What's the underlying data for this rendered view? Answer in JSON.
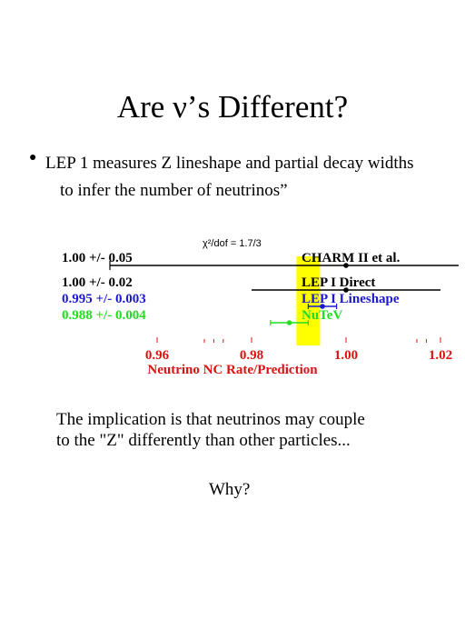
{
  "slide": {
    "title_prefix": "Are ",
    "title_nu": "ν",
    "title_suffix": "’s Different?",
    "bullet_line1": "LEP 1 measures Z lineshape and partial decay widths",
    "bullet_line2": "to infer the number of neutrinos”",
    "implication_line1": "The implication is that neutrinos may couple",
    "implication_line2": "to the \"Z\" differently than other particles...",
    "why": "Why?"
  },
  "chart_data": {
    "type": "scatter",
    "annotation": "χ²/dof = 1.7/3",
    "xlabel": "Neutrino NC Rate/Prediction",
    "xlim": [
      0.945,
      1.03
    ],
    "xticks": [
      "0.96",
      "0.98",
      "1.00",
      "1.02"
    ],
    "band": {
      "center": 0.992,
      "halfwidth": 0.0025,
      "color": "#ffff00"
    },
    "series": [
      {
        "name": "CHARM II et al.",
        "label": "1.00 +/- 0.05",
        "value": 1.0,
        "error": 0.05,
        "color": "#000000"
      },
      {
        "name": "LEP I Direct",
        "label": "1.00 +/- 0.02",
        "value": 1.0,
        "error": 0.02,
        "color": "#000000"
      },
      {
        "name": "LEP I Lineshape",
        "label": "0.995 +/- 0.003",
        "value": 0.995,
        "error": 0.003,
        "color": "#1a1acc"
      },
      {
        "name": "NuTeV",
        "label": "0.988 +/- 0.004",
        "value": 0.988,
        "error": 0.004,
        "color": "#22dd22"
      }
    ],
    "tick_color": "#dd1111"
  }
}
